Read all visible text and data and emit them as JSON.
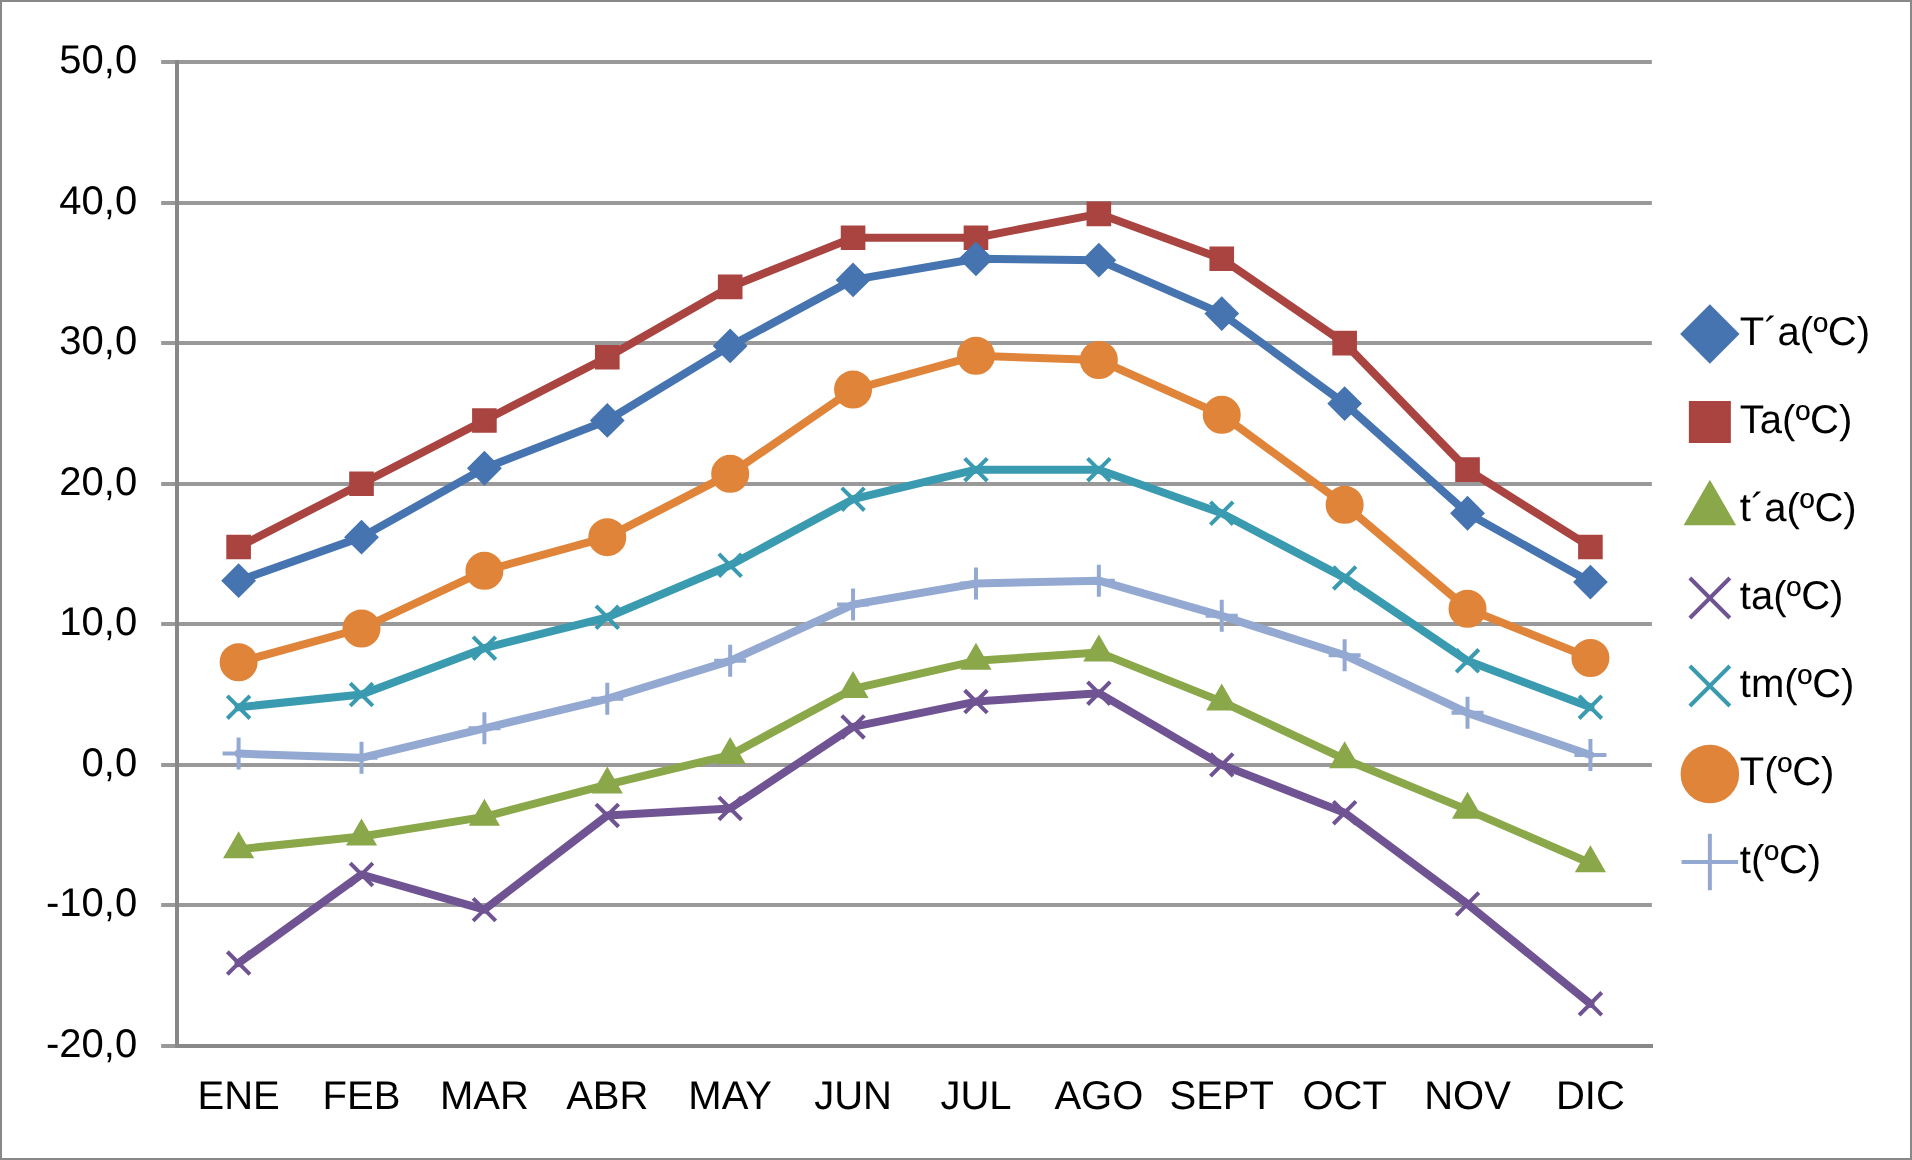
{
  "chart_data": {
    "type": "line",
    "categories": [
      "ENE",
      "FEB",
      "MAR",
      "ABR",
      "MAY",
      "JUN",
      "JUL",
      "AGO",
      "SEPT",
      "OCT",
      "NOV",
      "DIC"
    ],
    "ylim": [
      -20,
      50
    ],
    "yticks": [
      {
        "value": -20,
        "label": "-20,0"
      },
      {
        "value": -10,
        "label": "-10,0"
      },
      {
        "value": 0,
        "label": "0,0"
      },
      {
        "value": 10,
        "label": "10,0"
      },
      {
        "value": 20,
        "label": "20,0"
      },
      {
        "value": 30,
        "label": "30,0"
      },
      {
        "value": 40,
        "label": "40,0"
      },
      {
        "value": 50,
        "label": "50,0"
      }
    ],
    "grid": "y",
    "legend": "right",
    "line_style": "solid",
    "series": [
      {
        "name": "T´a(ºC)",
        "color": "#4674b0",
        "marker": "diamond",
        "values": [
          13.1,
          16.2,
          21.1,
          24.5,
          29.8,
          34.5,
          36.0,
          35.9,
          32.1,
          25.7,
          17.9,
          13.0
        ]
      },
      {
        "name": "Ta(ºC)",
        "color": "#a94440",
        "marker": "square",
        "values": [
          15.5,
          20.0,
          24.5,
          29.0,
          34.0,
          37.5,
          37.5,
          39.2,
          36.0,
          30.0,
          21.0,
          15.5
        ]
      },
      {
        "name": "t´a(ºC)",
        "color": "#8aa84a",
        "marker": "triangle",
        "values": [
          -6.0,
          -5.1,
          -3.7,
          -1.4,
          0.7,
          5.4,
          7.4,
          8.0,
          4.5,
          0.4,
          -3.2,
          -7.0
        ]
      },
      {
        "name": "ta(ºC)",
        "color": "#6f5393",
        "marker": "cross",
        "values": [
          -14.1,
          -7.8,
          -10.3,
          -3.6,
          -3.1,
          2.7,
          4.5,
          5.1,
          0.0,
          -3.4,
          -9.9,
          -17.0
        ]
      },
      {
        "name": "tm(ºC)",
        "color": "#3a9bb0",
        "marker": "cross",
        "values": [
          4.1,
          5.0,
          8.3,
          10.5,
          14.2,
          18.9,
          21.0,
          21.0,
          17.9,
          13.3,
          7.4,
          4.1
        ]
      },
      {
        "name": "T(ºC)",
        "color": "#e0843a",
        "marker": "circle",
        "values": [
          7.3,
          9.7,
          13.8,
          16.2,
          20.7,
          26.7,
          29.1,
          28.8,
          24.9,
          18.5,
          11.1,
          7.6
        ]
      },
      {
        "name": "t(ºC)",
        "color": "#93a9d2",
        "marker": "plus",
        "values": [
          0.8,
          0.5,
          2.6,
          4.7,
          7.4,
          11.4,
          12.9,
          13.1,
          10.6,
          7.8,
          3.7,
          0.7
        ]
      }
    ]
  }
}
